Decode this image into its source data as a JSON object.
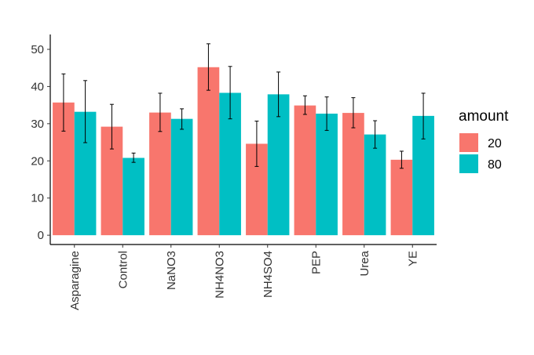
{
  "chart_data": {
    "type": "bar",
    "categories": [
      "Asparagine",
      "Control",
      "NaNO3",
      "NH4NO3",
      "NH4SO4",
      "PEP",
      "Urea",
      "YE"
    ],
    "series": [
      {
        "name": "20",
        "color": "#F8766D",
        "values": [
          35.7,
          29.2,
          33.0,
          45.2,
          24.6,
          34.9,
          32.9,
          20.3
        ],
        "error_low": [
          28.0,
          23.2,
          27.9,
          39.0,
          18.5,
          32.5,
          28.9,
          18.0
        ],
        "error_high": [
          43.4,
          35.2,
          38.2,
          51.5,
          30.7,
          37.5,
          37.0,
          22.6
        ]
      },
      {
        "name": "80",
        "color": "#00BFC4",
        "values": [
          33.2,
          20.8,
          31.3,
          38.3,
          37.9,
          32.7,
          27.1,
          32.1
        ],
        "error_low": [
          24.9,
          19.6,
          28.5,
          31.3,
          31.9,
          28.2,
          23.4,
          25.9
        ],
        "error_high": [
          41.6,
          22.1,
          34.0,
          45.4,
          43.9,
          37.2,
          30.8,
          38.2
        ]
      }
    ],
    "title": "",
    "xlabel": "",
    "ylabel": "",
    "ylim": [
      -2.5,
      54.0
    ],
    "yticks": [
      0,
      10,
      20,
      30,
      40,
      50
    ],
    "grid": false,
    "legend": {
      "title": "amount",
      "position": "right"
    }
  }
}
